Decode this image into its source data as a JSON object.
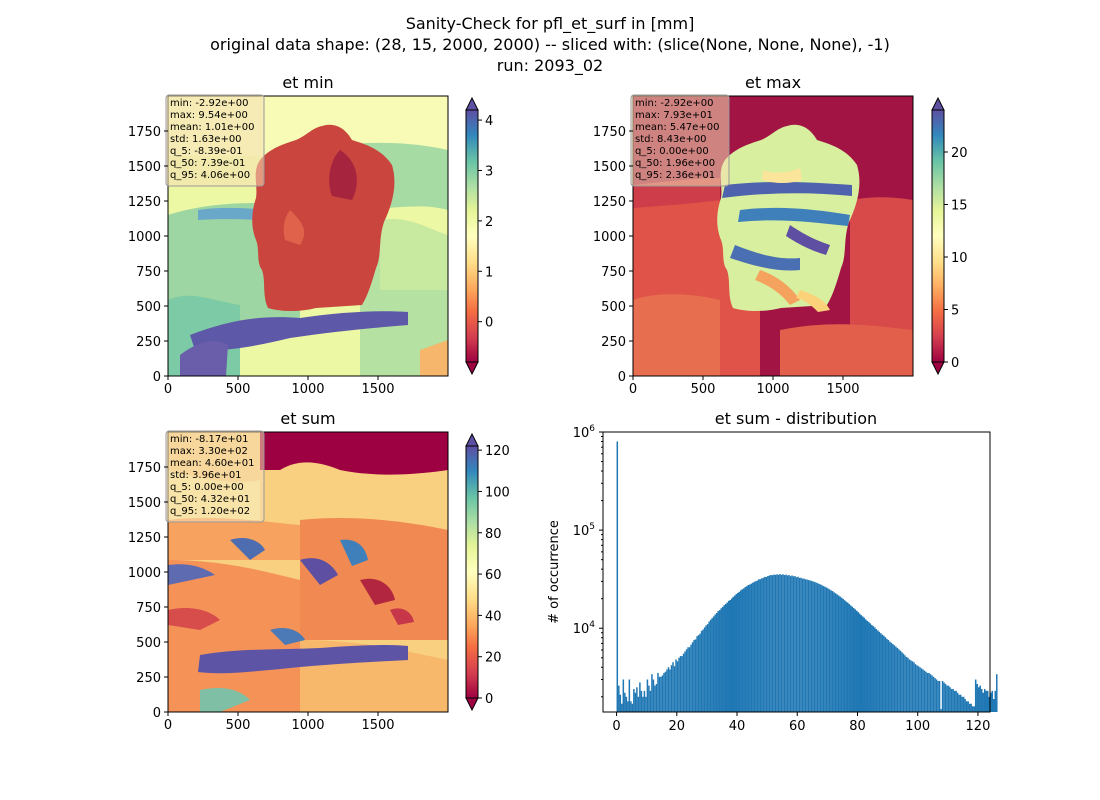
{
  "figure": {
    "title_lines": [
      "Sanity-Check for pfl_et_surf in [mm]",
      "original data shape: (28, 15, 2000, 2000) -- sliced with: (slice(None, None, None), -1)",
      "run: 2093_02"
    ]
  },
  "chart_data": [
    {
      "type": "heatmap",
      "title": "et min",
      "xlim": [
        0,
        2000
      ],
      "ylim": [
        0,
        2000
      ],
      "xticks": [
        0,
        500,
        1000,
        1500
      ],
      "yticks": [
        0,
        250,
        500,
        750,
        1000,
        1250,
        1500,
        1750
      ],
      "colormap": "Spectral",
      "colorbar": {
        "min": -0.8,
        "max": 4.2,
        "ticks": [
          0,
          1,
          2,
          3,
          4
        ],
        "extend": "both"
      },
      "stats": [
        "min: -2.92e+00",
        "max: 9.54e+00",
        "mean: 1.01e+00",
        "std: 1.63e+00",
        "q_5: -8.39e-01",
        "q_50: 7.39e-01",
        "q_95: 4.06e+00"
      ]
    },
    {
      "type": "heatmap",
      "title": "et max",
      "xlim": [
        0,
        2000
      ],
      "ylim": [
        0,
        2000
      ],
      "xticks": [
        0,
        500,
        1000,
        1500
      ],
      "yticks": [
        0,
        250,
        500,
        750,
        1000,
        1250,
        1500,
        1750
      ],
      "colormap": "Spectral",
      "colorbar": {
        "min": 0,
        "max": 24,
        "ticks": [
          0,
          5,
          10,
          15,
          20
        ],
        "extend": "both"
      },
      "stats": [
        "min: -2.92e+00",
        "max: 7.93e+01",
        "mean: 5.47e+00",
        "std: 8.43e+00",
        "q_5: 0.00e+00",
        "q_50: 1.96e+00",
        "q_95: 2.36e+01"
      ]
    },
    {
      "type": "heatmap",
      "title": "et sum",
      "xlim": [
        0,
        2000
      ],
      "ylim": [
        0,
        2000
      ],
      "xticks": [
        0,
        500,
        1000,
        1500
      ],
      "yticks": [
        0,
        250,
        500,
        750,
        1000,
        1250,
        1500,
        1750
      ],
      "colormap": "Spectral",
      "colorbar": {
        "min": 0,
        "max": 122,
        "ticks": [
          0,
          20,
          40,
          60,
          80,
          100,
          120
        ],
        "extend": "both"
      },
      "stats": [
        "min: -8.17e+01",
        "max: 3.30e+02",
        "mean: 4.60e+01",
        "std: 3.96e+01",
        "q_5: 0.00e+00",
        "q_50: 4.32e+01",
        "q_95: 1.20e+02"
      ]
    },
    {
      "type": "bar",
      "title": "et sum - distribution",
      "ylabel": "# of occurrence",
      "yscale": "log",
      "xlim": [
        -4.5,
        124
      ],
      "ylim": [
        1400,
        1000000
      ],
      "xticks": [
        0,
        20,
        40,
        60,
        80,
        100,
        120
      ],
      "yticks": [
        {
          "value": 10000,
          "base": "10",
          "exp": "4"
        },
        {
          "value": 100000,
          "base": "10",
          "exp": "5"
        },
        {
          "value": 1000000,
          "base": "10",
          "exp": "6"
        }
      ],
      "color": "#1f77b4",
      "bin_start": 0,
      "bin_width": 0.5,
      "values": [
        800000,
        2600,
        2100,
        1700,
        3000,
        2200,
        2000,
        1800,
        3000,
        1800,
        1700,
        2400,
        2200,
        2500,
        2000,
        2800,
        2300,
        2000,
        2300,
        2000,
        3000,
        2600,
        2300,
        3400,
        3000,
        2600,
        2700,
        3500,
        3200,
        3200,
        3300,
        3500,
        3600,
        3800,
        4000,
        3800,
        4200,
        4500,
        4100,
        4800,
        4600,
        5000,
        5200,
        5200,
        5500,
        5800,
        6100,
        6400,
        6400,
        6800,
        7200,
        7600,
        7700,
        8300,
        8500,
        8800,
        9400,
        9700,
        10200,
        10700,
        11000,
        11700,
        12200,
        12700,
        13200,
        13800,
        14300,
        15000,
        15300,
        16000,
        16500,
        17200,
        17700,
        18300,
        19000,
        19400,
        20100,
        20900,
        21500,
        22300,
        22900,
        23500,
        24300,
        25000,
        25500,
        26300,
        26800,
        27600,
        27900,
        28500,
        29100,
        29700,
        30200,
        30600,
        31500,
        31600,
        32300,
        32700,
        33400,
        33300,
        34100,
        34400,
        34900,
        34700,
        35200,
        35000,
        35400,
        35100,
        35600,
        35000,
        35500,
        34800,
        35200,
        34500,
        34900,
        33900,
        34500,
        33800,
        34000,
        33100,
        33500,
        32600,
        32700,
        32000,
        32100,
        31500,
        31400,
        31000,
        30700,
        30400,
        30000,
        29600,
        29200,
        28800,
        28300,
        27900,
        27400,
        26900,
        26400,
        26000,
        25400,
        24900,
        24300,
        23900,
        23200,
        22700,
        22100,
        21600,
        21000,
        20500,
        19900,
        19300,
        18700,
        18300,
        17700,
        17100,
        16600,
        16100,
        15600,
        15100,
        14600,
        14100,
        13600,
        13200,
        12800,
        12300,
        11900,
        11600,
        11200,
        10800,
        10500,
        10200,
        9800,
        9500,
        9200,
        8900,
        8600,
        8400,
        8100,
        7800,
        7600,
        7300,
        7100,
        6900,
        6700,
        6500,
        6300,
        6100,
        5900,
        5700,
        5500,
        5300,
        5100,
        5000,
        4800,
        4700,
        4600,
        4500,
        4300,
        4200,
        4100,
        4000,
        3900,
        3800,
        3700,
        3600,
        3500,
        3500,
        3400,
        3300,
        3200,
        3100,
        3000,
        2900,
        2900,
        1500,
        2900,
        2800,
        2700,
        2600,
        2600,
        2500,
        2400,
        2400,
        2300,
        2300,
        2200,
        2100,
        2100,
        2000,
        2000,
        1900,
        1800,
        1800,
        1700,
        1700,
        1600,
        1600,
        3000,
        2700,
        2500,
        2600,
        2400,
        2200,
        2400,
        2300,
        2300,
        2000,
        2200,
        2300,
        1900,
        2300,
        3400
      ]
    }
  ]
}
